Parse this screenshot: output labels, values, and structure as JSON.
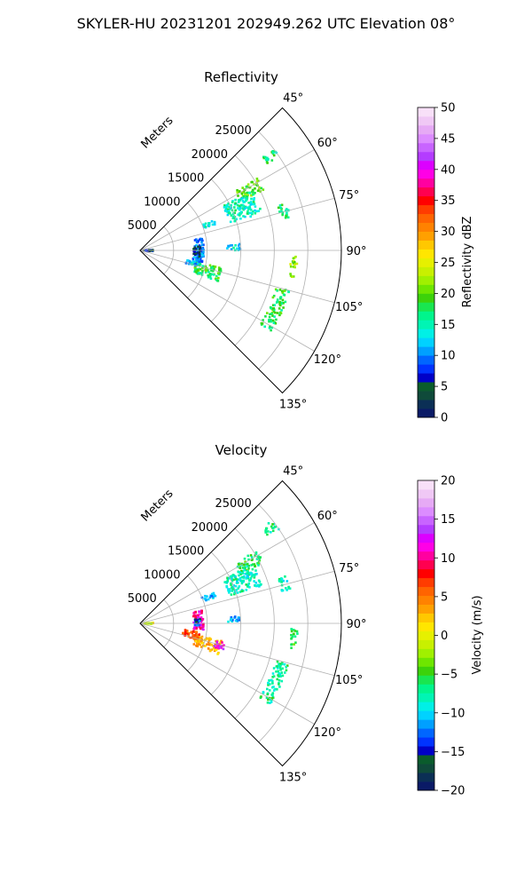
{
  "figure": {
    "suptitle": "SKYLER-HU  20231201  202949.262 UTC Elevation 08°"
  },
  "chart_data": [
    {
      "type": "polar-sector",
      "title": "Reflectivity",
      "radial_label": "Meters",
      "radial_ticks": [
        5000,
        10000,
        15000,
        20000,
        25000
      ],
      "radial_tick_labels": [
        "5000",
        "10000",
        "15000",
        "20000",
        "25000"
      ],
      "r_max": 30000,
      "azimuth_range_deg": [
        45,
        135
      ],
      "azimuth_ticks_deg": [
        45,
        60,
        75,
        90,
        105,
        120,
        135
      ],
      "azimuth_tick_labels": [
        "45°",
        "60°",
        "75°",
        "90°",
        "105°",
        "120°",
        "135°"
      ],
      "grid": true,
      "colorbar": {
        "label": "Reflectivity dBZ",
        "range": [
          0,
          50
        ],
        "ticks": [
          0,
          5,
          10,
          15,
          20,
          25,
          30,
          35,
          40,
          45,
          50
        ],
        "tick_labels": [
          "0",
          "5",
          "10",
          "15",
          "20",
          "25",
          "30",
          "35",
          "40",
          "45",
          "50"
        ],
        "colors": [
          "#0a1a66",
          "#0b2f55",
          "#0f4a3a",
          "#0a5c2c",
          "#0000c8",
          "#0033ff",
          "#0066ff",
          "#00a0ff",
          "#00d2ff",
          "#00f0e6",
          "#00f5b4",
          "#00f58c",
          "#19e650",
          "#3cd20a",
          "#6ee600",
          "#a0f000",
          "#c8f000",
          "#e6f000",
          "#ffe600",
          "#ffc800",
          "#ffa000",
          "#ff8200",
          "#ff6400",
          "#ff3c00",
          "#ff0000",
          "#ff0050",
          "#ff00a0",
          "#ff00e6",
          "#dc00ff",
          "#b43cff",
          "#c864ff",
          "#dc8cff",
          "#e6aaf5",
          "#f0c8f5",
          "#f8e0f8"
        ]
      },
      "echo_regions": [
        {
          "name": "cluster-north",
          "az": [
            58,
            64
          ],
          "r": [
            16500,
            20500
          ],
          "value": 20
        },
        {
          "name": "cluster-north-fringe",
          "az": [
            62,
            73
          ],
          "r": [
            14000,
            19000
          ],
          "value": 15
        },
        {
          "name": "cluster-north-small",
          "az": [
            67,
            71
          ],
          "r": [
            10000,
            12000
          ],
          "value": 13
        },
        {
          "name": "near-arc",
          "az": [
            78,
            102
          ],
          "r": [
            8000,
            9500
          ],
          "value": 10
        },
        {
          "name": "near-arc-blue",
          "az": [
            86,
            96
          ],
          "r": [
            8000,
            9000
          ],
          "value": 5
        },
        {
          "name": "cluster-south",
          "az": [
            102,
            112
          ],
          "r": [
            8500,
            12500
          ],
          "value": 18
        },
        {
          "name": "cluster-south-edge",
          "az": [
            100,
            106
          ],
          "r": [
            7000,
            9000
          ],
          "value": 12
        },
        {
          "name": "mid-blob",
          "az": [
            86,
            90
          ],
          "r": [
            13000,
            15000
          ],
          "value": 13
        },
        {
          "name": "far-arc-east",
          "az": [
            92,
            100
          ],
          "r": [
            22500,
            23500
          ],
          "value": 22
        },
        {
          "name": "far-arc-southeast",
          "az": [
            105,
            122
          ],
          "r": [
            21000,
            23000
          ],
          "value": 18
        },
        {
          "name": "far-arc-northeast",
          "az": [
            72,
            78
          ],
          "r": [
            21500,
            23000
          ],
          "value": 17
        },
        {
          "name": "far-north-specks",
          "az": [
            52,
            56
          ],
          "r": [
            23000,
            25000
          ],
          "value": 17
        },
        {
          "name": "origin-specks",
          "az": [
            88,
            94
          ],
          "r": [
            500,
            2000
          ],
          "value": 5
        }
      ]
    },
    {
      "type": "polar-sector",
      "title": "Velocity",
      "radial_label": "Meters",
      "radial_ticks": [
        5000,
        10000,
        15000,
        20000,
        25000
      ],
      "radial_tick_labels": [
        "5000",
        "10000",
        "15000",
        "20000",
        "25000"
      ],
      "r_max": 30000,
      "azimuth_range_deg": [
        45,
        135
      ],
      "azimuth_ticks_deg": [
        45,
        60,
        75,
        90,
        105,
        120,
        135
      ],
      "azimuth_tick_labels": [
        "45°",
        "60°",
        "75°",
        "90°",
        "105°",
        "120°",
        "135°"
      ],
      "grid": true,
      "colorbar": {
        "label": "Velocity (m/s)",
        "range": [
          -20,
          20
        ],
        "ticks": [
          -20,
          -15,
          -10,
          -5,
          0,
          5,
          10,
          15,
          20
        ],
        "tick_labels": [
          "−20",
          "−15",
          "−10",
          "−5",
          "0",
          "5",
          "10",
          "15",
          "20"
        ],
        "colors": [
          "#0a1a66",
          "#0b2f55",
          "#0f4a3a",
          "#0a5c2c",
          "#0000c8",
          "#0033ff",
          "#0066ff",
          "#00a0ff",
          "#00d2ff",
          "#00f0e6",
          "#00f5b4",
          "#00f58c",
          "#19e650",
          "#3cd20a",
          "#6ee600",
          "#a0f000",
          "#c8f000",
          "#e6f000",
          "#ffe600",
          "#ffc800",
          "#ffa000",
          "#ff8200",
          "#ff6400",
          "#ff3c00",
          "#ff0000",
          "#ff0050",
          "#ff00a0",
          "#ff00e6",
          "#dc00ff",
          "#b43cff",
          "#c864ff",
          "#dc8cff",
          "#e6aaf5",
          "#f0c8f5",
          "#f8e0f8"
        ]
      },
      "echo_regions": [
        {
          "name": "cluster-north",
          "az": [
            58,
            64
          ],
          "r": [
            16500,
            20500
          ],
          "value": -6
        },
        {
          "name": "cluster-north-fringe",
          "az": [
            62,
            73
          ],
          "r": [
            14000,
            19000
          ],
          "value": -8
        },
        {
          "name": "cluster-north-small",
          "az": [
            67,
            71
          ],
          "r": [
            10000,
            12000
          ],
          "value": -11
        },
        {
          "name": "near-arc",
          "az": [
            78,
            96
          ],
          "r": [
            8000,
            9500
          ],
          "value": 11
        },
        {
          "name": "near-arc-blue",
          "az": [
            86,
            92
          ],
          "r": [
            8000,
            9000
          ],
          "value": -14
        },
        {
          "name": "cluster-south",
          "az": [
            102,
            112
          ],
          "r": [
            8500,
            12500
          ],
          "value": 3
        },
        {
          "name": "cluster-south-magenta",
          "az": [
            103,
            108
          ],
          "r": [
            11500,
            13000
          ],
          "value": 12
        },
        {
          "name": "cluster-south-edge",
          "az": [
            98,
            106
          ],
          "r": [
            6500,
            9000
          ],
          "value": 6
        },
        {
          "name": "mid-blob",
          "az": [
            86,
            90
          ],
          "r": [
            13000,
            15000
          ],
          "value": -11
        },
        {
          "name": "far-arc-east",
          "az": [
            92,
            100
          ],
          "r": [
            22500,
            23500
          ],
          "value": -5
        },
        {
          "name": "far-arc-southeast",
          "az": [
            105,
            122
          ],
          "r": [
            21000,
            23000
          ],
          "value": -7
        },
        {
          "name": "far-arc-northeast",
          "az": [
            72,
            78
          ],
          "r": [
            21500,
            23000
          ],
          "value": -8
        },
        {
          "name": "far-north-specks",
          "az": [
            52,
            56
          ],
          "r": [
            23000,
            25000
          ],
          "value": -7
        },
        {
          "name": "origin-specks",
          "az": [
            88,
            94
          ],
          "r": [
            500,
            2000
          ],
          "value": 0
        }
      ]
    }
  ]
}
